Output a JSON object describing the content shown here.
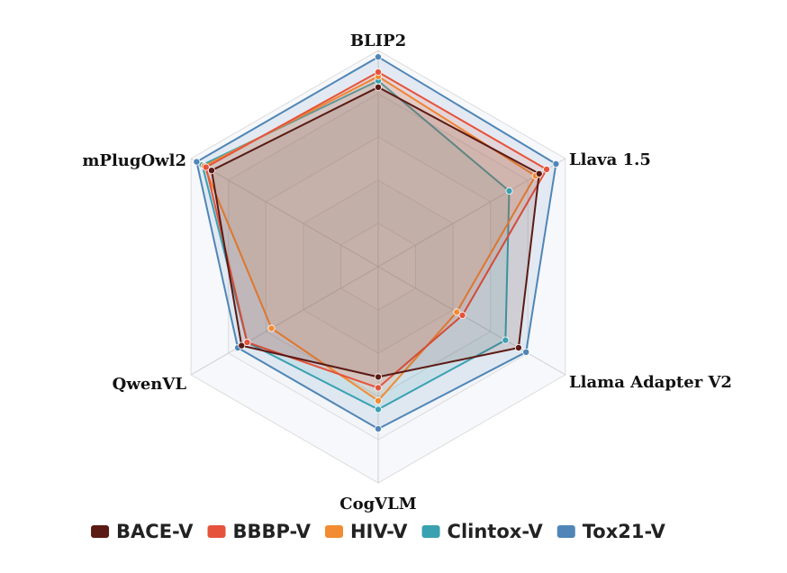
{
  "chart_data": {
    "type": "radar",
    "axes": [
      "BLIP2",
      "Llava 1.5",
      "Llama Adapter V2",
      "CogVLM",
      "QwenVL",
      "mPlugOwl2"
    ],
    "rmax": 1.0,
    "rings": 5,
    "grid": true,
    "legend_position": "bottom",
    "series": [
      {
        "name": "BACE-V",
        "color": "#5c1a14",
        "values": [
          0.83,
          0.86,
          0.75,
          0.51,
          0.73,
          0.89
        ]
      },
      {
        "name": "BBBP-V",
        "color": "#e5533c",
        "values": [
          0.9,
          0.9,
          0.45,
          0.56,
          0.7,
          0.92
        ]
      },
      {
        "name": "HIV-V",
        "color": "#f28b31",
        "values": [
          0.88,
          0.84,
          0.42,
          0.62,
          0.57,
          0.93
        ]
      },
      {
        "name": "Clintox-V",
        "color": "#3aa1b1",
        "values": [
          0.86,
          0.7,
          0.68,
          0.66,
          0.7,
          0.94
        ]
      },
      {
        "name": "Tox21-V",
        "color": "#4f86b7",
        "values": [
          0.97,
          0.95,
          0.79,
          0.75,
          0.75,
          0.97
        ]
      }
    ]
  }
}
